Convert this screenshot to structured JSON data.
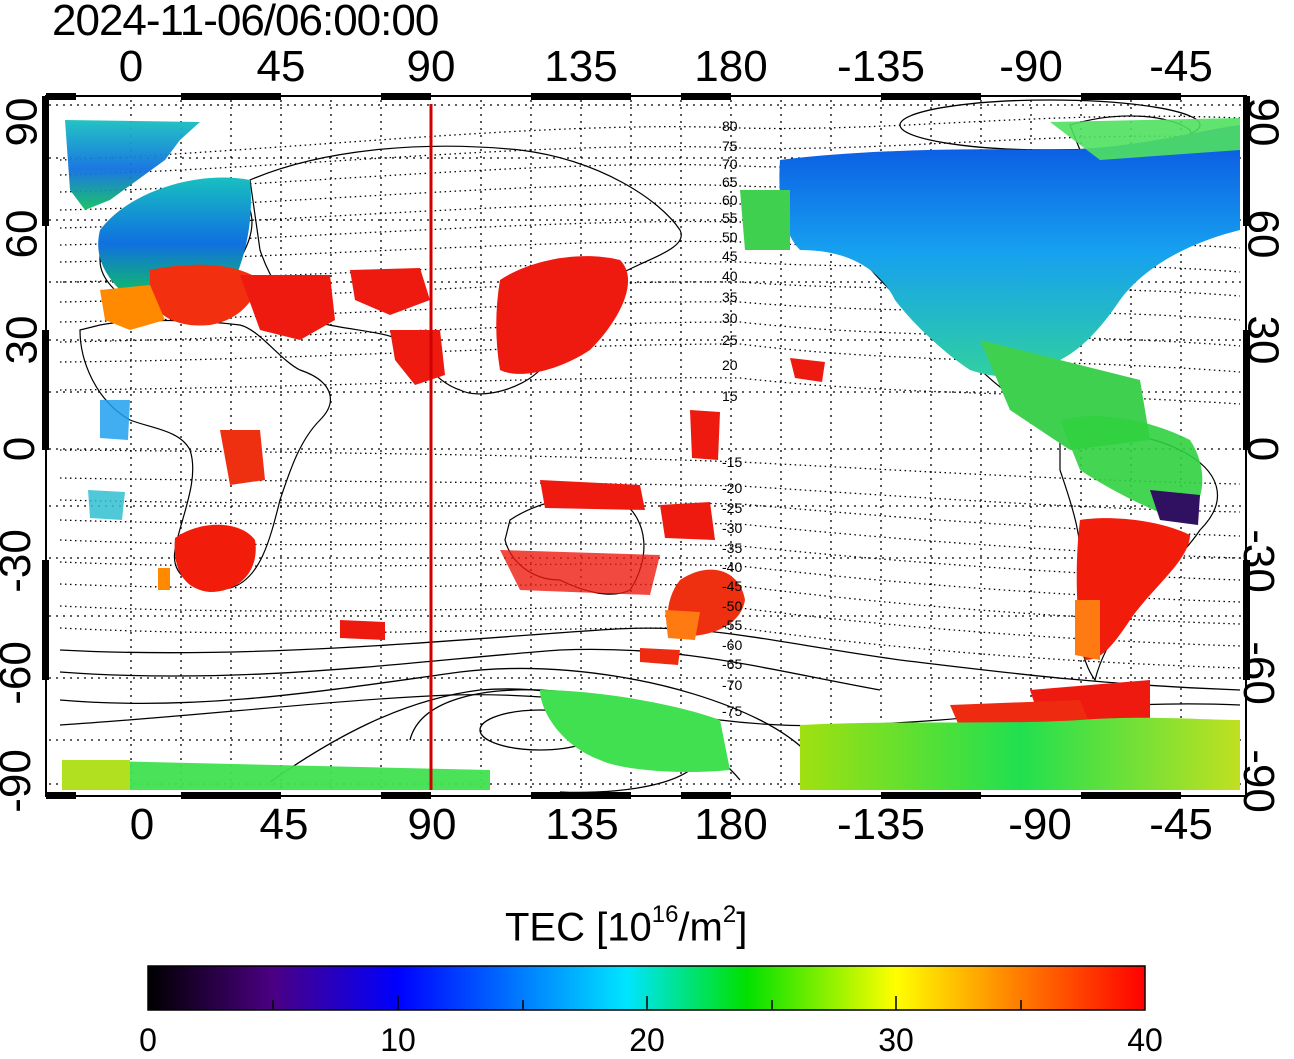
{
  "title": "2024-11-06/06:00:00",
  "map": {
    "lon_ticks_top": [
      "0",
      "45",
      "90",
      "135",
      "180",
      "-135",
      "-90",
      "-45"
    ],
    "lon_ticks_bottom": [
      "0",
      "45",
      "90",
      "135",
      "180",
      "-135",
      "-90",
      "-45"
    ],
    "lat_ticks_left": [
      "90",
      "60",
      "30",
      "0",
      "-30",
      "-60",
      "-90"
    ],
    "lat_ticks_right": [
      "90",
      "60",
      "30",
      "0",
      "-30",
      "-60",
      "-90"
    ],
    "magnetic_latitude_labels": [
      "80",
      "75",
      "70",
      "65",
      "60",
      "55",
      "50",
      "45",
      "40",
      "35",
      "30",
      "25",
      "20",
      "15",
      "-15",
      "-20",
      "-25",
      "-30",
      "-35",
      "-40",
      "-45",
      "-50",
      "-55",
      "-60",
      "-65",
      "-70",
      "-75"
    ],
    "subsolar_meridian_lon": 90,
    "grid": true
  },
  "colorbar": {
    "label_prefix": "TEC  [10",
    "label_exp": "16",
    "label_mid": "/m",
    "label_exp2": "2",
    "label_suffix": "]",
    "ticks": [
      "0",
      "10",
      "20",
      "30",
      "40"
    ],
    "min": 0,
    "max": 40,
    "colors": [
      "#000000",
      "#4b0082",
      "#0000ff",
      "#00e5ff",
      "#00e000",
      "#ffff00",
      "#ff8000",
      "#ff0000"
    ]
  },
  "chart_data": {
    "type": "heatmap",
    "title": "2024-11-06/06:00:00",
    "xlabel": "",
    "ylabel": "",
    "x_ticks": [
      0,
      45,
      90,
      135,
      180,
      -135,
      -90,
      -45
    ],
    "y_ticks": [
      90,
      60,
      30,
      0,
      -30,
      -60,
      -90
    ],
    "ylim": [
      -90,
      90
    ],
    "colorbar_range": [
      0,
      40
    ],
    "colorbar_label": "TEC [10^16/m^2]"
  }
}
